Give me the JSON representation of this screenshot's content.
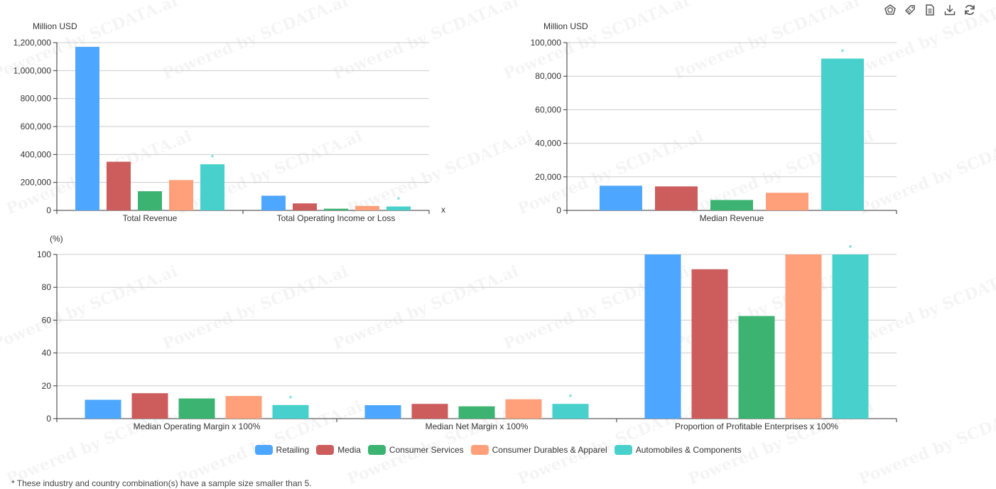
{
  "toolbar": {
    "icons": [
      "chart-type-icon",
      "tag-icon",
      "data-view-icon",
      "download-icon",
      "refresh-icon"
    ]
  },
  "colors": {
    "Retailing": "#4da6ff",
    "Media": "#cd5c5c",
    "Consumer Services": "#3cb371",
    "Consumer Durables & Apparel": "#ffa07a",
    "Automobiles & Components": "#48d1cc"
  },
  "legend": [
    "Retailing",
    "Media",
    "Consumer Services",
    "Consumer Durables & Apparel",
    "Automobiles & Components"
  ],
  "watermark": "Powered by SCDATA.ai",
  "footnote": "* These industry and country combination(s) have a sample size smaller than 5.",
  "chart_data": [
    {
      "type": "bar",
      "ylabel": "Million USD",
      "xlabel": "x",
      "ylim": [
        0,
        1200000
      ],
      "yticks": [
        0,
        200000,
        400000,
        600000,
        800000,
        1000000,
        1200000
      ],
      "categories": [
        "Total Revenue",
        "Total Operating Income or Loss"
      ],
      "series": [
        {
          "name": "Retailing",
          "values": [
            1170000,
            105000
          ]
        },
        {
          "name": "Media",
          "values": [
            348000,
            50000
          ]
        },
        {
          "name": "Consumer Services",
          "values": [
            137000,
            12000
          ]
        },
        {
          "name": "Consumer Durables & Apparel",
          "values": [
            217000,
            32000
          ]
        },
        {
          "name": "Automobiles & Components",
          "values": [
            330000,
            28000
          ]
        }
      ],
      "annotation": "*",
      "annotated_series": "Automobiles & Components"
    },
    {
      "type": "bar",
      "ylabel": "Million USD",
      "ylim": [
        0,
        100000
      ],
      "yticks": [
        0,
        20000,
        40000,
        60000,
        80000,
        100000
      ],
      "categories": [
        "Median Revenue"
      ],
      "series": [
        {
          "name": "Retailing",
          "values": [
            14700
          ]
        },
        {
          "name": "Media",
          "values": [
            14300
          ]
        },
        {
          "name": "Consumer Services",
          "values": [
            6200
          ]
        },
        {
          "name": "Consumer Durables & Apparel",
          "values": [
            10500
          ]
        },
        {
          "name": "Automobiles & Components",
          "values": [
            90500
          ]
        }
      ],
      "annotation": "*",
      "annotated_series": "Automobiles & Components"
    },
    {
      "type": "bar",
      "ylabel": "(%)",
      "ylim": [
        0,
        100
      ],
      "yticks": [
        0,
        20,
        40,
        60,
        80,
        100
      ],
      "categories": [
        "Median Operating Margin x 100%",
        "Median Net Margin x 100%",
        "Proportion of Profitable Enterprises x 100%"
      ],
      "series": [
        {
          "name": "Retailing",
          "values": [
            11.5,
            8.2,
            100
          ]
        },
        {
          "name": "Media",
          "values": [
            15.5,
            9.0,
            91
          ]
        },
        {
          "name": "Consumer Services",
          "values": [
            12.3,
            7.5,
            62.5
          ]
        },
        {
          "name": "Consumer Durables & Apparel",
          "values": [
            13.8,
            11.8,
            100
          ]
        },
        {
          "name": "Automobiles & Components",
          "values": [
            8.3,
            9.0,
            100
          ]
        }
      ],
      "annotation": "*",
      "annotated_series": "Automobiles & Components"
    }
  ]
}
